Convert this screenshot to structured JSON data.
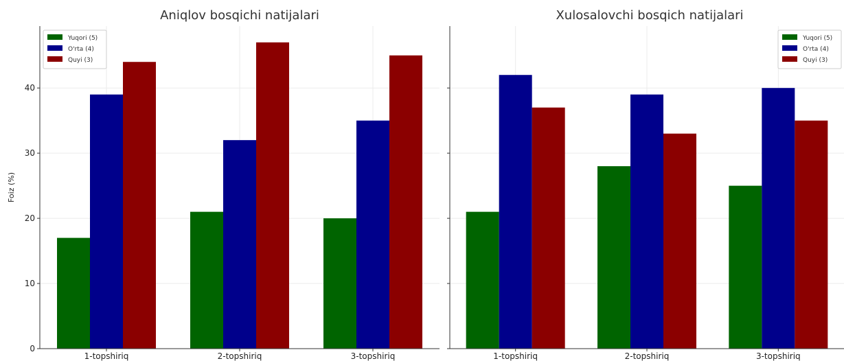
{
  "chart_data": [
    {
      "type": "bar",
      "title": "Aniqlov bosqichi natijalari",
      "ylabel": "Foiz (%)",
      "xlabel": "",
      "ylim": [
        0,
        49.5
      ],
      "yticks": [
        0,
        10,
        20,
        30,
        40
      ],
      "categories": [
        "1-topshiriq",
        "2-topshiriq",
        "3-topshiriq"
      ],
      "legend_position": "top-left",
      "grid": true,
      "series": [
        {
          "name": "Yuqori (5)",
          "color": "#006400",
          "values": [
            17,
            21,
            20
          ]
        },
        {
          "name": "O'rta (4)",
          "color": "#00008b",
          "values": [
            39,
            32,
            35
          ]
        },
        {
          "name": "Quyi (3)",
          "color": "#8b0000",
          "values": [
            44,
            47,
            45
          ]
        }
      ]
    },
    {
      "type": "bar",
      "title": "Xulosalovchi bosqich natijalari",
      "ylabel": "",
      "xlabel": "",
      "ylim": [
        0,
        49.5
      ],
      "yticks": [
        0,
        10,
        20,
        30,
        40
      ],
      "categories": [
        "1-topshiriq",
        "2-topshiriq",
        "3-topshiriq"
      ],
      "legend_position": "top-right",
      "grid": true,
      "series": [
        {
          "name": "Yuqori (5)",
          "color": "#006400",
          "values": [
            21,
            28,
            25
          ]
        },
        {
          "name": "O'rta (4)",
          "color": "#00008b",
          "values": [
            42,
            39,
            40
          ]
        },
        {
          "name": "Quyi (3)",
          "color": "#8b0000",
          "values": [
            37,
            33,
            35
          ]
        }
      ]
    }
  ]
}
